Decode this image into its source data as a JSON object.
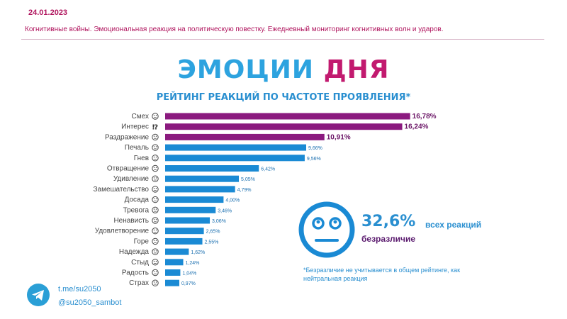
{
  "header": {
    "date": "24.01.2023",
    "subtitle": "Когнитивные войны. Эмоциональная реакция на политическую повестку. Ежедневный мониторинг когнитивных волн и ударов."
  },
  "main_title": {
    "word1": "ЭМОЦИИ",
    "word2": "ДНЯ"
  },
  "chart_data": {
    "type": "bar",
    "orientation": "horizontal",
    "title": "РЕЙТИНГ РЕАКЦИЙ ПО ЧАСТОТЕ ПРОЯВЛЕНИЯ*",
    "categories": [
      "Смех",
      "Интерес",
      "Раздражение",
      "Печаль",
      "Гнев",
      "Отвращение",
      "Удивление",
      "Замешательство",
      "Досада",
      "Тревога",
      "Ненависть",
      "Удовлетворение",
      "Горе",
      "Надежда",
      "Стыд",
      "Радость",
      "Страх"
    ],
    "values": [
      16.78,
      16.24,
      10.91,
      9.66,
      9.56,
      6.42,
      5.05,
      4.79,
      4.0,
      3.46,
      3.06,
      2.65,
      2.55,
      1.62,
      1.24,
      1.04,
      0.97
    ],
    "value_labels": [
      "16,78%",
      "16,24%",
      "10,91%",
      "9,66%",
      "9,56%",
      "6,42%",
      "5,05%",
      "4,79%",
      "4,00%",
      "3,46%",
      "3,06%",
      "2,65%",
      "2,55%",
      "1,62%",
      "1,24%",
      "1,04%",
      "0,97%"
    ],
    "icons": [
      "laughing-face-icon",
      "interrobang-icon",
      "irritated-face-icon",
      "sad-face-icon",
      "angry-face-icon",
      "disgusted-face-icon",
      "surprised-face-icon",
      "confused-face-icon",
      "annoyed-face-icon",
      "anxious-face-icon",
      "hateful-face-icon",
      "satisfied-face-icon",
      "grief-face-icon",
      "hope-icon",
      "ashamed-face-icon",
      "joyful-face-icon",
      "fearful-face-icon"
    ],
    "highlight_count": 3,
    "colors": {
      "highlight": "#8b1a7f",
      "normal": "#1a8ad4",
      "label_highlight": "#6b1566",
      "label_normal": "#1a6fb0"
    }
  },
  "indifference": {
    "value": "32,6%",
    "text": "всех реакций",
    "label": "безразличие",
    "icon": "indifferent-face-icon"
  },
  "footnote": "*Безразличие не учитывается в общем рейтинге, как нейтральная реакция",
  "footer": {
    "icon": "telegram-icon",
    "link1": "t.me/su2050",
    "link2": "@su2050_sambot"
  }
}
